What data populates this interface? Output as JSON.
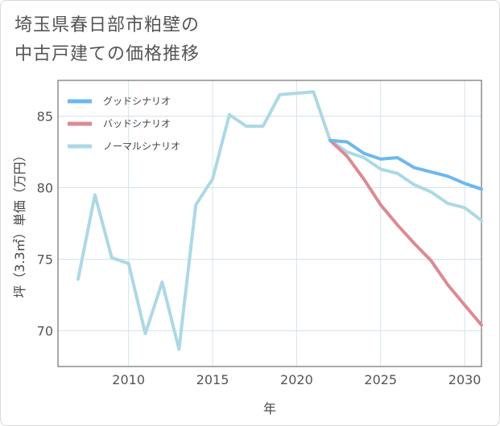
{
  "title": {
    "line1": "埼玉県春日部市粕壁の",
    "line2": "中古戸建ての価格推移"
  },
  "chart_data": {
    "type": "line",
    "xlabel": "年",
    "ylabel": "坪（3.3㎡）単価（万円）",
    "xlim": [
      2005.8,
      2031
    ],
    "ylim": [
      67.5,
      87.5
    ],
    "x_ticks": [
      2010,
      2015,
      2020,
      2025,
      2030
    ],
    "y_ticks": [
      70,
      75,
      80,
      85
    ],
    "grid": true,
    "legend_position": "top-left",
    "series": [
      {
        "name": "グッドシナリオ",
        "color": "#6cb8ef",
        "x": [
          2022,
          2023,
          2024,
          2025,
          2026,
          2027,
          2028,
          2029,
          2030,
          2031
        ],
        "y": [
          83.3,
          83.2,
          82.4,
          82.0,
          82.1,
          81.4,
          81.1,
          80.8,
          80.3,
          79.9
        ]
      },
      {
        "name": "バッドシナリオ",
        "color": "#dc8a92",
        "x": [
          2022,
          2023,
          2024,
          2025,
          2026,
          2027,
          2028,
          2029,
          2030,
          2031
        ],
        "y": [
          83.3,
          82.2,
          80.6,
          78.8,
          77.4,
          76.1,
          74.9,
          73.2,
          71.8,
          70.4
        ]
      },
      {
        "name": "ノーマルシナリオ",
        "color": "#add8e6",
        "x": [
          2007,
          2008,
          2009,
          2010,
          2011,
          2012,
          2013,
          2014,
          2015,
          2016,
          2017,
          2018,
          2019,
          2020,
          2021,
          2022,
          2023,
          2024,
          2025,
          2026,
          2027,
          2028,
          2029,
          2030,
          2031
        ],
        "y": [
          73.6,
          79.5,
          75.1,
          74.7,
          69.8,
          73.4,
          68.7,
          78.8,
          80.6,
          85.1,
          84.3,
          84.3,
          86.5,
          86.6,
          86.7,
          83.3,
          82.5,
          82.1,
          81.3,
          81.0,
          80.2,
          79.7,
          78.9,
          78.6,
          77.7
        ]
      }
    ]
  }
}
